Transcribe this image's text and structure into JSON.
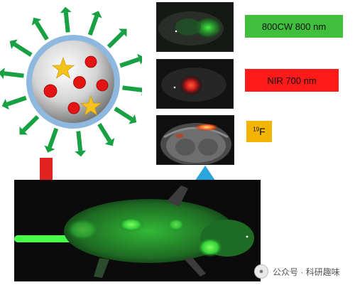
{
  "labels": {
    "channel_1": "800CW 800 nm",
    "channel_2": "NIR 700 nm",
    "channel_3_sup": "19",
    "channel_3_base": "F"
  },
  "colors": {
    "channel_1_bg": "#3fbf3c",
    "channel_2_bg": "#ff1a1a",
    "channel_3_bg": "#f2b400",
    "nanoparticle_shell": "#8fb8de",
    "nanoparticle_core": "#dcdcdc",
    "payload_dot": "#e11",
    "payload_star": "#f3c21b",
    "ligand_arrow": "#17a142",
    "injection_arrow": "#e32222",
    "imaging_arrow": "#2aa6dd",
    "mouse_fluorescence": "#39e33b"
  },
  "icons": {
    "nanoparticle": "nanoparticle-icon",
    "injection_arrow": "red-down-arrow-icon",
    "imaging_arrow": "blue-up-arrow-icon",
    "watermark_logo": "wechat-logo-icon"
  },
  "watermark": {
    "text": "公众号 · 科研趣味"
  }
}
